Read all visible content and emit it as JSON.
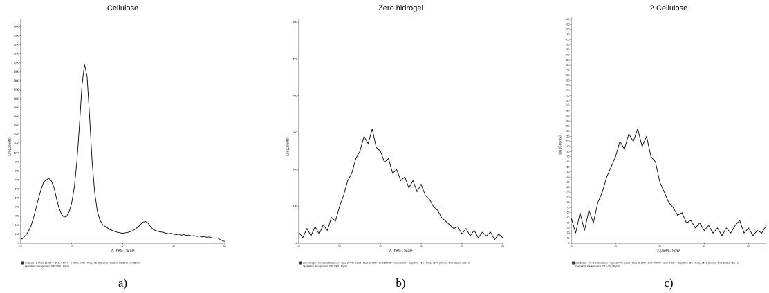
{
  "chart_data": [
    {
      "type": "line",
      "title": "Cellulose",
      "xlabel": "2-Theta - Scale",
      "ylabel": "Lin (Counts)",
      "color": "#000000",
      "caption": "a)",
      "notes": [
        "Cellulose - 2-Theta: 10.000 ° - 50.1 ; 1.540 K - 0 Offset: 0.000 - Temp.: 25 °C (Room) - Creation: 5/6/2010 1:27:36 AM",
        "Operations: Background 0.000,1.000 | Import"
      ],
      "x": [
        10,
        10.5,
        11,
        11.5,
        12,
        12.5,
        13,
        13.5,
        14,
        14.5,
        15,
        15.5,
        16,
        16.5,
        17,
        17.5,
        18,
        18.5,
        19,
        19.5,
        20,
        20.5,
        21,
        21.5,
        22,
        22.5,
        23,
        23.5,
        24,
        24.5,
        25,
        25.5,
        26,
        26.5,
        27,
        27.5,
        28,
        28.5,
        29,
        29.5,
        30,
        30.5,
        31,
        31.5,
        32,
        32.5,
        33,
        33.5,
        34,
        34.5,
        35,
        35.5,
        36,
        36.5,
        37,
        37.5,
        38,
        38.5,
        39,
        39.5,
        40,
        40.5,
        41,
        41.5,
        42,
        42.5,
        43,
        43.5,
        44,
        44.5,
        45,
        45.5,
        46,
        46.5,
        47,
        47.5,
        48,
        48.5,
        49,
        49.5,
        50
      ],
      "values": [
        40,
        60,
        90,
        130,
        190,
        280,
        390,
        500,
        600,
        680,
        700,
        720,
        690,
        620,
        500,
        390,
        320,
        290,
        300,
        350,
        450,
        620,
        900,
        1300,
        1750,
        1980,
        1850,
        1400,
        900,
        560,
        360,
        260,
        210,
        190,
        170,
        150,
        140,
        130,
        120,
        115,
        110,
        115,
        120,
        130,
        140,
        160,
        180,
        210,
        235,
        240,
        220,
        180,
        150,
        140,
        130,
        125,
        120,
        110,
        105,
        110,
        100,
        95,
        100,
        90,
        95,
        85,
        90,
        80,
        85,
        75,
        80,
        70,
        75,
        65,
        70,
        60,
        55,
        60,
        45,
        30,
        20
      ],
      "xlim": [
        10,
        50
      ],
      "ylim": [
        0,
        2450
      ],
      "xticks": [
        10,
        20,
        30,
        40,
        50
      ],
      "yticks": [
        0,
        100,
        200,
        300,
        400,
        500,
        600,
        700,
        800,
        900,
        1000,
        1100,
        1200,
        1300,
        1400,
        1500,
        1600,
        1700,
        1800,
        1900,
        2000,
        2100,
        2200,
        2300,
        2400
      ]
    },
    {
      "type": "line",
      "title": "Zero hidrogel",
      "xlabel": "2-Theta - Scale",
      "ylabel": "Lin (Counts)",
      "color": "#000000",
      "caption": "b)",
      "notes": [
        "Zero hidrogel - File: Zerohidrogel.raw - Type: 2Th/Th locked - Start: 10.000 ° - End: 59.998 ° - Step: 0.020 ° - Step time: 15 s - Temp.: 25 °C (Room) - Time Started: 12 s - 2",
        "Operations: Background 0.000,1.000 | Import"
      ],
      "x": [
        10,
        11,
        12,
        13,
        14,
        15,
        16,
        17,
        18,
        19,
        20,
        21,
        22,
        23,
        24,
        25,
        26,
        27,
        28,
        29,
        30,
        31,
        32,
        33,
        34,
        35,
        36,
        37,
        38,
        39,
        40,
        41,
        42,
        43,
        44,
        45,
        46,
        47,
        48,
        49,
        50,
        51,
        52,
        53,
        54,
        55,
        56,
        57,
        58,
        59,
        60
      ],
      "values": [
        30,
        15,
        40,
        20,
        45,
        25,
        50,
        35,
        70,
        60,
        100,
        130,
        170,
        190,
        230,
        250,
        290,
        270,
        310,
        260,
        250,
        220,
        230,
        190,
        200,
        170,
        180,
        150,
        170,
        140,
        160,
        130,
        120,
        100,
        90,
        70,
        60,
        50,
        40,
        45,
        25,
        40,
        20,
        35,
        15,
        30,
        20,
        30,
        10,
        25,
        15
      ],
      "xlim": [
        10,
        60
      ],
      "ylim": [
        0,
        600
      ],
      "xticks": [
        10,
        20,
        30,
        40,
        50,
        60
      ],
      "yticks": [
        0,
        100,
        200,
        300,
        400,
        500,
        600
      ]
    },
    {
      "type": "line",
      "title": "2 Cellulose",
      "xlabel": "2-Theta - Scale",
      "ylabel": "Lin (Counts)",
      "color": "#000000",
      "caption": "c)",
      "notes": [
        "2 Cellulose - File: 2 Cellulose.raw - Type: 2Th/Th locked - Start: 10.000 ° - End: 59.999 ° - Step: 0.020 ° - Step time: 15 s - Temp.: 25 °C (Room) - Time Started: 15 s - 2",
        "Operations: Background 0.000,1.000 | Import"
      ],
      "x": [
        10,
        11,
        12,
        13,
        14,
        15,
        16,
        17,
        18,
        19,
        20,
        21,
        22,
        23,
        24,
        25,
        26,
        27,
        28,
        29,
        30,
        31,
        32,
        33,
        34,
        35,
        36,
        37,
        38,
        39,
        40,
        41,
        42,
        43,
        44,
        45,
        46,
        47,
        48,
        49,
        50,
        51,
        52,
        53,
        54
      ],
      "values": [
        50,
        20,
        60,
        25,
        65,
        40,
        80,
        100,
        130,
        150,
        170,
        200,
        185,
        215,
        200,
        225,
        190,
        210,
        170,
        160,
        120,
        100,
        80,
        70,
        55,
        60,
        40,
        45,
        30,
        40,
        25,
        35,
        20,
        30,
        15,
        30,
        20,
        35,
        45,
        20,
        30,
        15,
        25,
        20,
        35
      ],
      "xlim": [
        10,
        54
      ],
      "ylim": [
        0,
        440
      ],
      "xticks": [
        10,
        20,
        30,
        40,
        50
      ],
      "yticks": [
        0,
        10,
        20,
        30,
        40,
        50,
        60,
        70,
        80,
        90,
        100,
        110,
        120,
        130,
        140,
        150,
        160,
        170,
        180,
        190,
        200,
        210,
        220,
        230,
        240,
        250,
        260,
        270,
        280,
        290,
        300,
        310,
        320,
        330,
        340,
        350,
        360,
        370,
        380,
        390,
        400,
        410,
        420,
        430,
        440
      ]
    }
  ]
}
